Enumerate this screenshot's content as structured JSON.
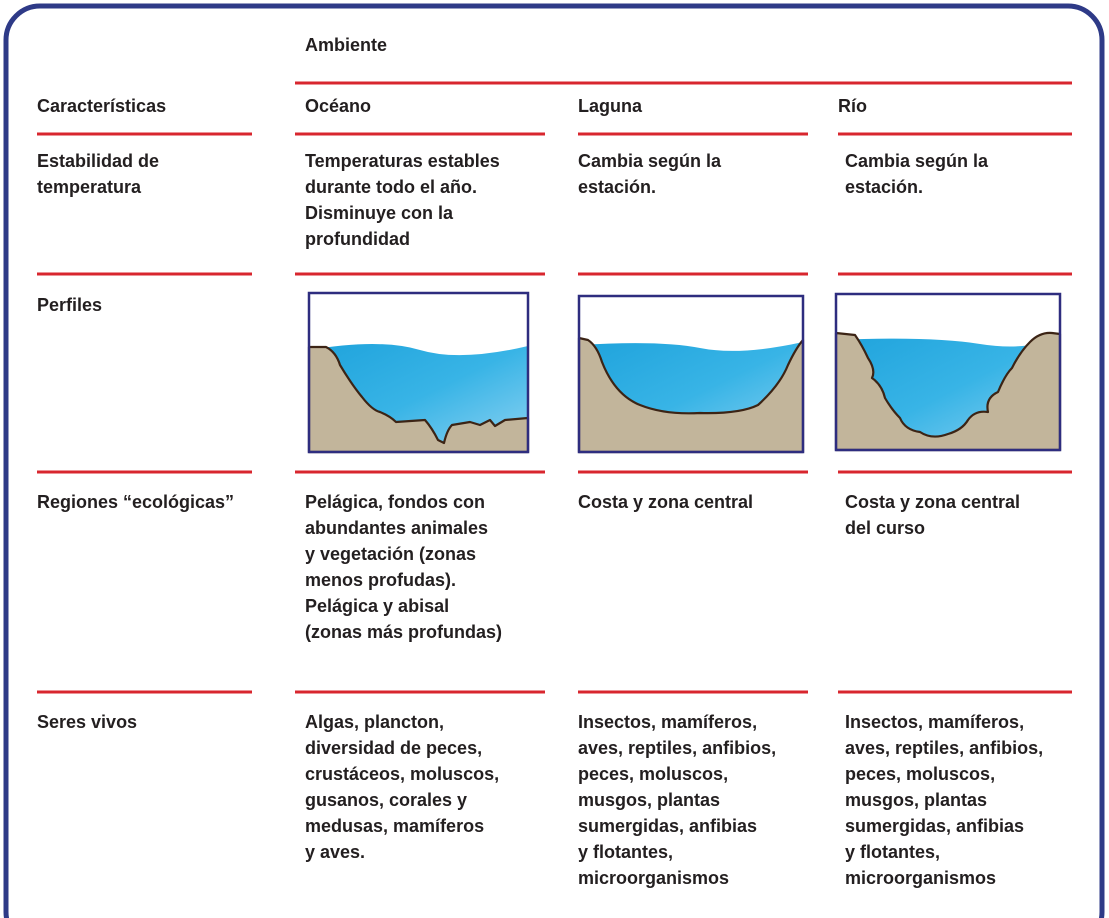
{
  "header": {
    "title": "Ambiente"
  },
  "table": {
    "columns": [
      "Características",
      "Océano",
      "Laguna",
      "Río"
    ],
    "rows": [
      {
        "label": [
          "Estabilidad de",
          "temperatura"
        ],
        "cells": [
          [
            "Temperaturas estables",
            "durante todo el año.",
            "Disminuye con la",
            "profundidad"
          ],
          [
            "Cambia según la",
            "estación."
          ],
          [
            "Cambia según la",
            "estación."
          ]
        ]
      },
      {
        "label": [
          "Perfiles"
        ]
      },
      {
        "label": [
          "Regiones “ecológicas”"
        ],
        "cells": [
          [
            "Pelágica, fondos con",
            "abundantes animales",
            "y vegetación (zonas",
            "menos profudas).",
            "Pelágica y abisal",
            "(zonas más profundas)"
          ],
          [
            "Costa y zona central"
          ],
          [
            "Costa y zona central",
            "del curso"
          ]
        ]
      },
      {
        "label": [
          "Seres vivos"
        ],
        "cells": [
          [
            "Algas, plancton,",
            "diversidad de peces,",
            "crustáceos, moluscos,",
            "gusanos, corales y",
            "medusas, mamíferos",
            "y aves."
          ],
          [
            "Insectos, mamíferos,",
            "aves, reptiles, anfibios,",
            "peces, moluscos,",
            "musgos, plantas",
            "sumergidas, anfibias",
            "y flotantes,",
            "microorganismos"
          ],
          [
            "Insectos, mamíferos,",
            "aves, reptiles, anfibios,",
            "peces, moluscos,",
            "musgos, plantas",
            "sumergidas, anfibias",
            "y flotantes,",
            "microorganismos"
          ]
        ]
      }
    ]
  }
}
